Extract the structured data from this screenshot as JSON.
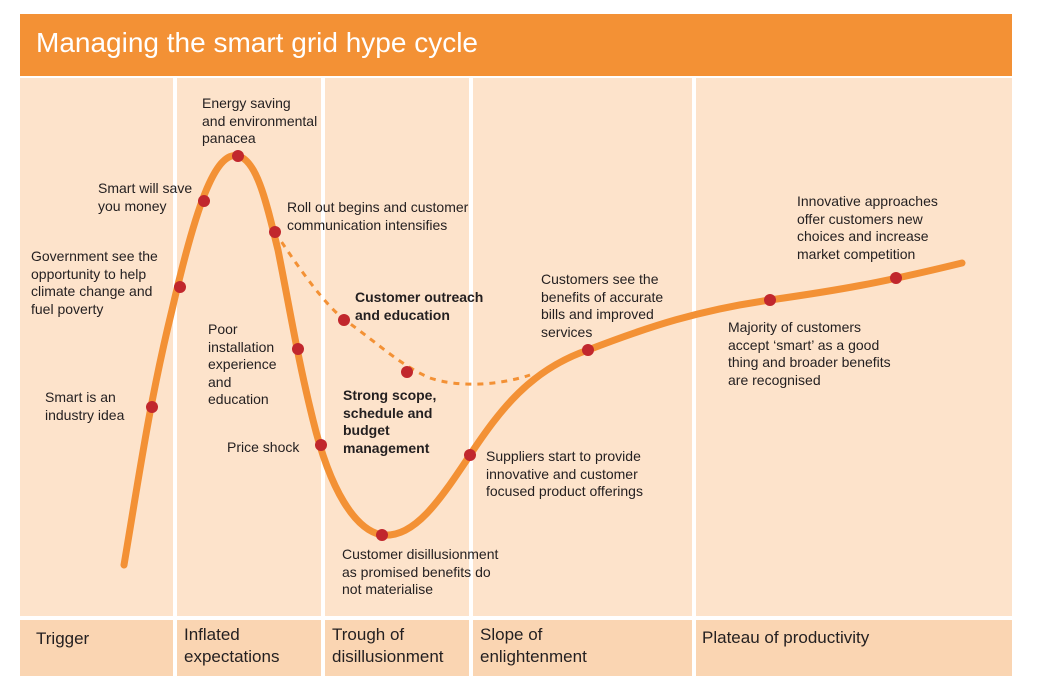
{
  "title": "Managing the smart grid hype cycle",
  "phases": [
    "Trigger",
    "Inflated\nexpectations",
    "Trough of\ndisillusionment",
    "Slope of\nenlightenment",
    "Plateau of productivity"
  ],
  "labels": {
    "smart_idea": "Smart is an\nindustry idea",
    "government": "Government see the\nopportunity to help\nclimate change and\nfuel poverty",
    "save_money": "Smart will save\nyou money",
    "energy_saving": "Energy saving\nand environmental\npanacea",
    "roll_out": "Roll out begins and customer\ncommunication intensifies",
    "customer_outreach": "Customer outreach\nand education",
    "poor_installation": "Poor\ninstallation\nexperience\nand\neducation",
    "strong_scope": "Strong scope,\nschedule and\nbudget\nmanagement",
    "price_shock": "Price shock",
    "disillusionment": "Customer disillusionment\nas promised benefits do\nnot materialise",
    "suppliers": "Suppliers start to provide\ninnovative and customer\nfocused product offerings",
    "customers_see": "Customers see the\nbenefits of accurate\nbills and improved\nservices",
    "majority": "Majority of customers\naccept ‘smart’ as a good\nthing and broader benefits\nare recognised",
    "innovative": "Innovative approaches\noffer customers new\nchoices and increase\nmarket competition"
  },
  "colors": {
    "curve": "#f39135",
    "marker": "#c1272d",
    "title_bar": "#f39135",
    "panel": "#fde3cb",
    "footer": "#fad5b2"
  }
}
